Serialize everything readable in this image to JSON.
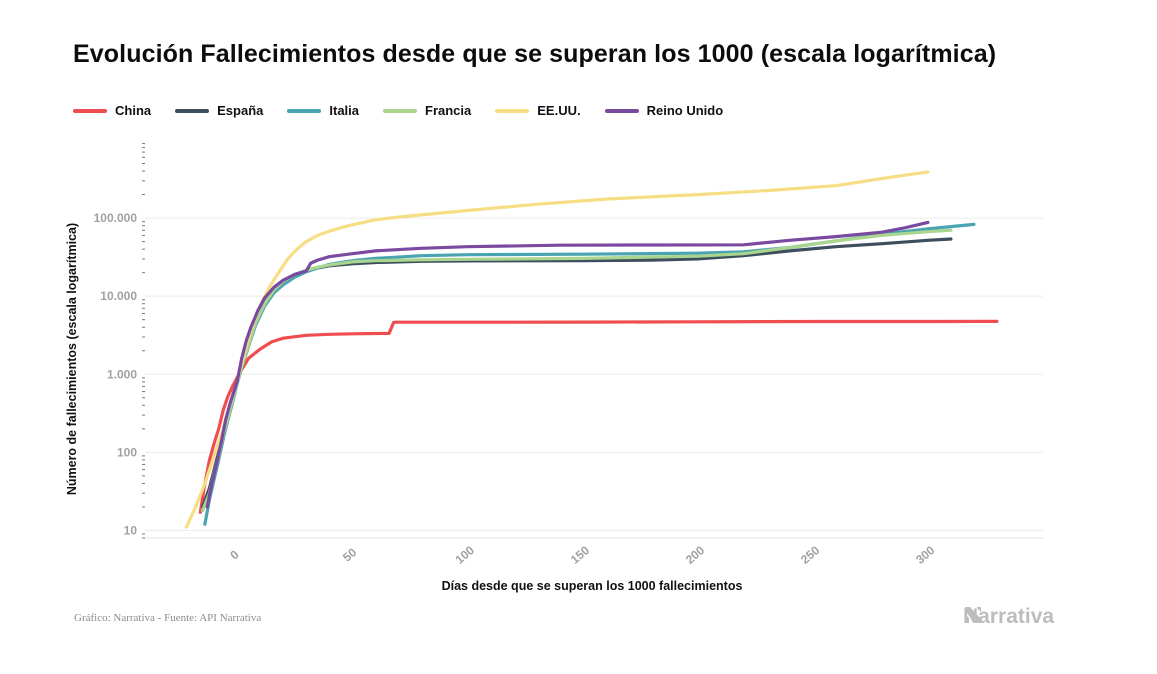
{
  "header": {
    "title": "Evolución Fallecimientos desde que se superan los 1000 (escala logarítmica)"
  },
  "footer": {
    "source": "Gráfico: Narrativa - Fuente: API Narrativa",
    "brand": "Narrativa"
  },
  "colors": {
    "China": "#ef4d4f",
    "España": "#3e4e5e",
    "Italia": "#4aa3b0",
    "Francia": "#a9d58e",
    "EE.UU.": "#f7dd84",
    "Reino Unido": "#7a4aa0",
    "grid": "#ececec",
    "tick_text": "#a0a0a0"
  },
  "chart_data": {
    "type": "line",
    "title": "Evolución Fallecimientos desde que se superan los 1000 (escala logarítmica)",
    "xlabel": "Días desde que se superan los 1000 fallecimientos",
    "ylabel": "Número de fallecimientos (escala logarítmica)",
    "y_scale": "log",
    "xlim": [
      -40,
      350
    ],
    "ylim": [
      8,
      1000000
    ],
    "x_ticks": [
      0,
      50,
      100,
      150,
      200,
      250,
      300
    ],
    "x_tick_labels": [
      "0",
      "50",
      "100",
      "150",
      "200",
      "250",
      "300"
    ],
    "y_ticks": [
      10,
      100,
      1000,
      10000,
      100000
    ],
    "y_tick_labels": [
      "10",
      "100",
      "1.000",
      "10.000",
      "100.000"
    ],
    "grid": "horizontal",
    "legend_position": "top-left",
    "series": [
      {
        "name": "China",
        "x": [
          -16,
          -14,
          -12,
          -10,
          -8,
          -6,
          -4,
          -2,
          0,
          2,
          5,
          10,
          15,
          20,
          30,
          40,
          50,
          60,
          66,
          68,
          70,
          100,
          150,
          200,
          250,
          300,
          330
        ],
        "y": [
          17,
          40,
          80,
          130,
          200,
          350,
          520,
          700,
          900,
          1150,
          1600,
          2100,
          2600,
          2900,
          3150,
          3250,
          3300,
          3330,
          3340,
          4630,
          4640,
          4640,
          4650,
          4700,
          4740,
          4740,
          4750
        ]
      },
      {
        "name": "España",
        "x": [
          -15,
          -12,
          -10,
          -8,
          -6,
          -4,
          -2,
          0,
          2,
          5,
          8,
          12,
          16,
          20,
          25,
          30,
          35,
          40,
          50,
          60,
          80,
          100,
          120,
          150,
          180,
          200,
          220,
          240,
          260,
          280,
          300,
          310
        ],
        "y": [
          20,
          35,
          60,
          100,
          180,
          300,
          480,
          800,
          1300,
          2500,
          4800,
          8500,
          12500,
          15500,
          18500,
          21000,
          23000,
          24500,
          26000,
          27000,
          28000,
          28300,
          28400,
          28500,
          29000,
          30000,
          33000,
          38000,
          43000,
          47000,
          52000,
          54000
        ]
      },
      {
        "name": "Italia",
        "x": [
          -14,
          -12,
          -10,
          -8,
          -6,
          -4,
          -2,
          0,
          2,
          5,
          8,
          12,
          16,
          20,
          25,
          30,
          35,
          40,
          50,
          60,
          80,
          100,
          150,
          200,
          220,
          240,
          260,
          280,
          300,
          320
        ],
        "y": [
          12,
          25,
          45,
          80,
          150,
          260,
          430,
          750,
          1200,
          2300,
          4200,
          7500,
          11000,
          14000,
          17500,
          20500,
          23000,
          25500,
          28500,
          30500,
          33000,
          34000,
          34500,
          35500,
          37000,
          42000,
          51000,
          62000,
          73000,
          83000
        ]
      },
      {
        "name": "Francia",
        "x": [
          -15,
          -12,
          -10,
          -8,
          -6,
          -4,
          -2,
          0,
          2,
          5,
          8,
          12,
          16,
          20,
          25,
          30,
          35,
          40,
          50,
          60,
          80,
          100,
          150,
          200,
          220,
          240,
          260,
          280,
          300,
          310
        ],
        "y": [
          18,
          30,
          55,
          90,
          170,
          280,
          460,
          780,
          1250,
          2400,
          4500,
          8000,
          12000,
          15500,
          19000,
          21500,
          23500,
          25000,
          27500,
          28500,
          29200,
          29700,
          30500,
          32500,
          35000,
          42000,
          51000,
          60000,
          67000,
          70000
        ]
      },
      {
        "name": "EE.UU.",
        "x": [
          -22,
          -18,
          -14,
          -10,
          -6,
          -3,
          0,
          3,
          6,
          10,
          14,
          18,
          22,
          26,
          30,
          35,
          40,
          45,
          50,
          60,
          70,
          80,
          100,
          130,
          160,
          200,
          230,
          260,
          280,
          300
        ],
        "y": [
          11,
          20,
          40,
          90,
          200,
          420,
          800,
          1800,
          3700,
          7500,
          13000,
          20000,
          30000,
          40000,
          50000,
          60000,
          68000,
          75000,
          82000,
          95000,
          103000,
          110000,
          125000,
          150000,
          175000,
          200000,
          225000,
          260000,
          320000,
          390000
        ]
      },
      {
        "name": "Reino Unido",
        "x": [
          -13,
          -11,
          -9,
          -7,
          -5,
          -3,
          -1,
          0,
          2,
          4,
          6,
          9,
          12,
          16,
          20,
          25,
          30,
          32,
          35,
          40,
          50,
          60,
          80,
          100,
          140,
          180,
          220,
          240,
          260,
          280,
          290,
          300
        ],
        "y": [
          20,
          40,
          70,
          130,
          260,
          430,
          650,
          800,
          1600,
          2700,
          4000,
          6500,
          9500,
          13000,
          16000,
          19000,
          21000,
          26500,
          29000,
          32000,
          35000,
          38000,
          41000,
          43000,
          45000,
          45200,
          45500,
          52000,
          58000,
          66000,
          75000,
          88000
        ]
      }
    ]
  }
}
